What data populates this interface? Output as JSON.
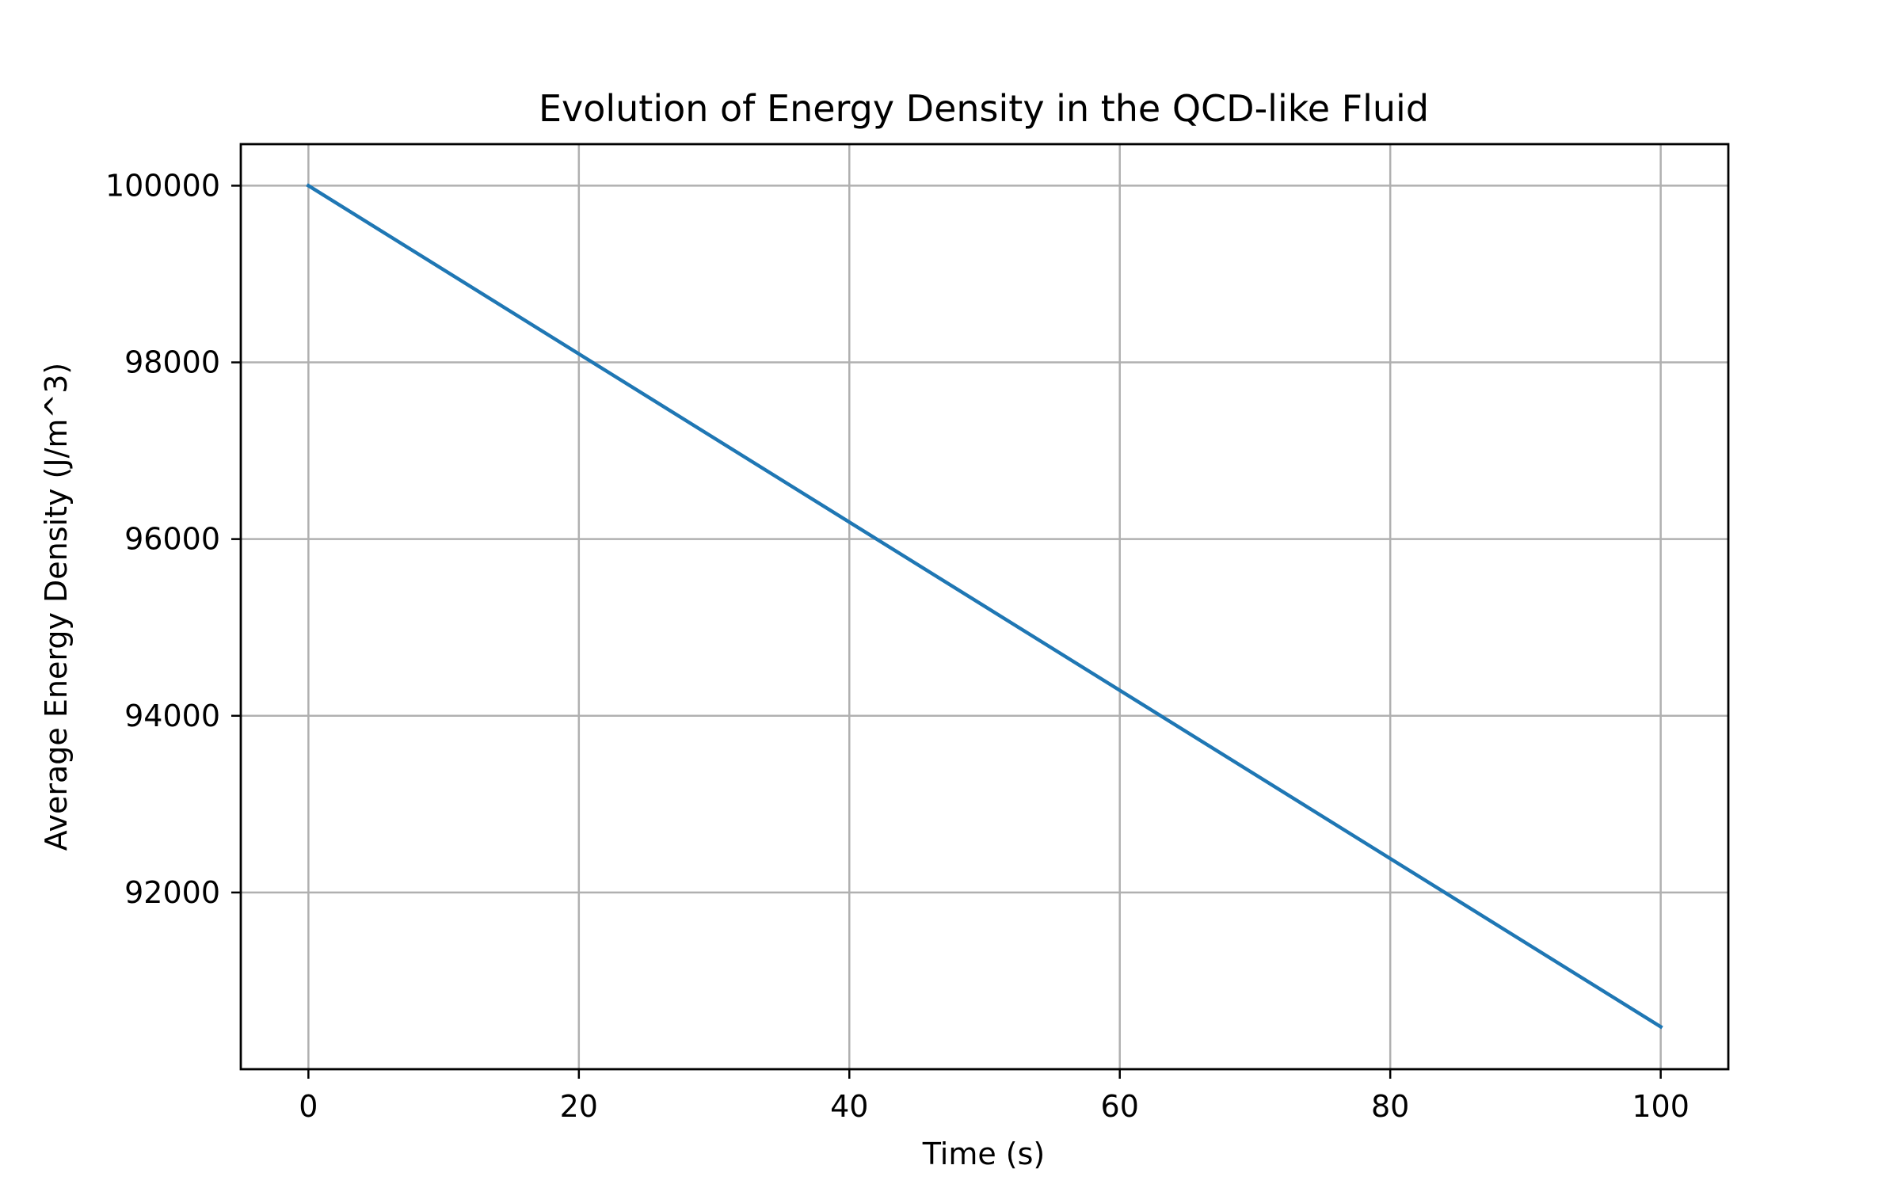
{
  "chart_data": {
    "type": "line",
    "title": "Evolution of Energy Density in the QCD-like Fluid",
    "xlabel": "Time (s)",
    "ylabel": "Average Energy Density (J/m^3)",
    "xlim": [
      -5,
      105
    ],
    "ylim": [
      90000,
      100470
    ],
    "xticks": [
      0,
      20,
      40,
      60,
      80,
      100
    ],
    "yticks": [
      92000,
      94000,
      96000,
      98000,
      100000
    ],
    "grid": true,
    "series": [
      {
        "color": "#1f77b4",
        "x": [
          0,
          100
        ],
        "y": [
          100000,
          90480
        ]
      }
    ]
  }
}
